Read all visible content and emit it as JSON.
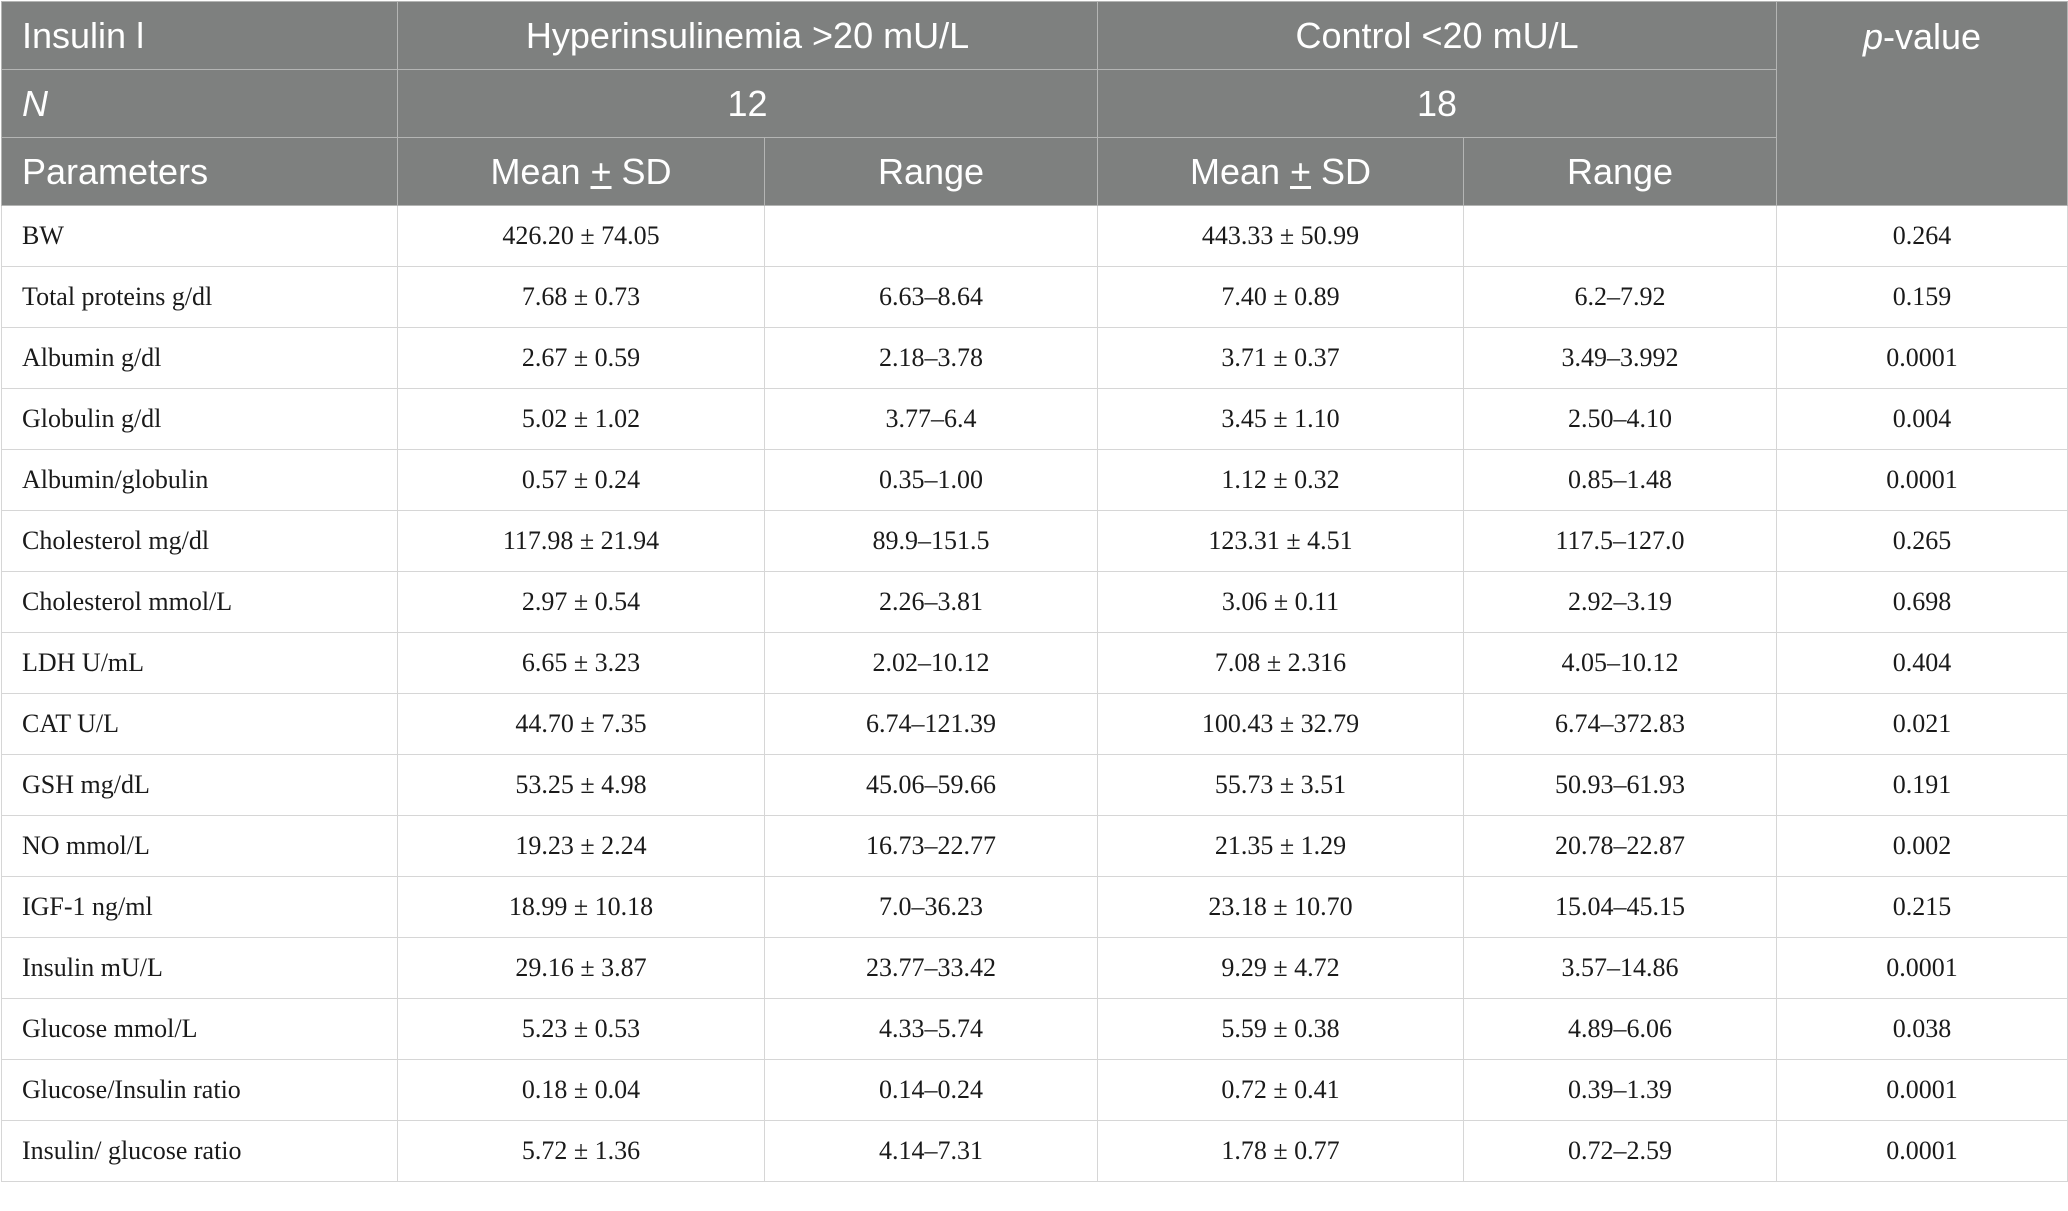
{
  "header": {
    "row1": {
      "c1": "Insulin l",
      "c2": "Hyperinsulinemia >20 mU/L",
      "c3": "Control <20 mU/L",
      "pvalue_italic": "p",
      "pvalue_rest": "-value"
    },
    "row2": {
      "c1": "N",
      "c2": "12",
      "c3": "18"
    },
    "row3": {
      "c1": "Parameters",
      "mean_a": "Mean ",
      "pm_a": "+",
      "sd_a": " SD",
      "range_a": "Range",
      "mean_b": "Mean ",
      "pm_b": "+",
      "sd_b": " SD",
      "range_b": "Range"
    }
  },
  "rows": [
    {
      "param": "BW",
      "hyper_mean": "426.20 ± 74.05",
      "hyper_range": "",
      "ctrl_mean": "443.33 ± 50.99",
      "ctrl_range": "",
      "p": "0.264"
    },
    {
      "param": "Total proteins g/dl",
      "hyper_mean": "7.68 ± 0.73",
      "hyper_range": "6.63–8.64",
      "ctrl_mean": "7.40 ± 0.89",
      "ctrl_range": "6.2–7.92",
      "p": "0.159"
    },
    {
      "param": "Albumin g/dl",
      "hyper_mean": "2.67 ± 0.59",
      "hyper_range": "2.18–3.78",
      "ctrl_mean": "3.71 ± 0.37",
      "ctrl_range": "3.49–3.992",
      "p": "0.0001"
    },
    {
      "param": "Globulin g/dl",
      "hyper_mean": "5.02 ± 1.02",
      "hyper_range": "3.77–6.4",
      "ctrl_mean": "3.45 ± 1.10",
      "ctrl_range": "2.50–4.10",
      "p": "0.004"
    },
    {
      "param": "Albumin/globulin",
      "hyper_mean": "0.57 ± 0.24",
      "hyper_range": "0.35–1.00",
      "ctrl_mean": "1.12 ± 0.32",
      "ctrl_range": "0.85–1.48",
      "p": "0.0001"
    },
    {
      "param": "Cholesterol mg/dl",
      "hyper_mean": "117.98 ± 21.94",
      "hyper_range": "89.9–151.5",
      "ctrl_mean": "123.31 ± 4.51",
      "ctrl_range": "117.5–127.0",
      "p": "0.265"
    },
    {
      "param": "Cholesterol mmol/L",
      "hyper_mean": "2.97 ± 0.54",
      "hyper_range": "2.26–3.81",
      "ctrl_mean": "3.06 ± 0.11",
      "ctrl_range": "2.92–3.19",
      "p": "0.698"
    },
    {
      "param": "LDH U/mL",
      "hyper_mean": "6.65 ± 3.23",
      "hyper_range": "2.02–10.12",
      "ctrl_mean": "7.08 ± 2.316",
      "ctrl_range": "4.05–10.12",
      "p": "0.404"
    },
    {
      "param": "CAT U/L",
      "hyper_mean": "44.70 ± 7.35",
      "hyper_range": "6.74–121.39",
      "ctrl_mean": "100.43 ± 32.79",
      "ctrl_range": "6.74–372.83",
      "p": "0.021"
    },
    {
      "param": "GSH mg/dL",
      "hyper_mean": "53.25 ± 4.98",
      "hyper_range": "45.06–59.66",
      "ctrl_mean": "55.73 ± 3.51",
      "ctrl_range": "50.93–61.93",
      "p": "0.191"
    },
    {
      "param": "NO mmol/L",
      "hyper_mean": "19.23 ± 2.24",
      "hyper_range": "16.73–22.77",
      "ctrl_mean": "21.35 ± 1.29",
      "ctrl_range": "20.78–22.87",
      "p": "0.002"
    },
    {
      "param": "IGF-1 ng/ml",
      "hyper_mean": "18.99 ± 10.18",
      "hyper_range": "7.0–36.23",
      "ctrl_mean": "23.18 ± 10.70",
      "ctrl_range": "15.04–45.15",
      "p": "0.215"
    },
    {
      "param": "Insulin mU/L",
      "hyper_mean": "29.16 ± 3.87",
      "hyper_range": "23.77–33.42",
      "ctrl_mean": "9.29 ± 4.72",
      "ctrl_range": "3.57–14.86",
      "p": "0.0001"
    },
    {
      "param": "Glucose mmol/L",
      "hyper_mean": "5.23 ± 0.53",
      "hyper_range": "4.33–5.74",
      "ctrl_mean": "5.59 ± 0.38",
      "ctrl_range": "4.89–6.06",
      "p": "0.038"
    },
    {
      "param": "Glucose/Insulin ratio",
      "hyper_mean": "0.18 ± 0.04",
      "hyper_range": "0.14–0.24",
      "ctrl_mean": "0.72 ± 0.41",
      "ctrl_range": "0.39–1.39",
      "p": "0.0001"
    },
    {
      "param": "Insulin/ glucose ratio",
      "hyper_mean": "5.72 ± 1.36",
      "hyper_range": "4.14–7.31",
      "ctrl_mean": "1.78 ± 0.77",
      "ctrl_range": "0.72–2.59",
      "p": "0.0001"
    }
  ],
  "colors": {
    "header_bg": "#7e807f",
    "header_text": "#ffffff",
    "grid": "#d6d6d6"
  }
}
